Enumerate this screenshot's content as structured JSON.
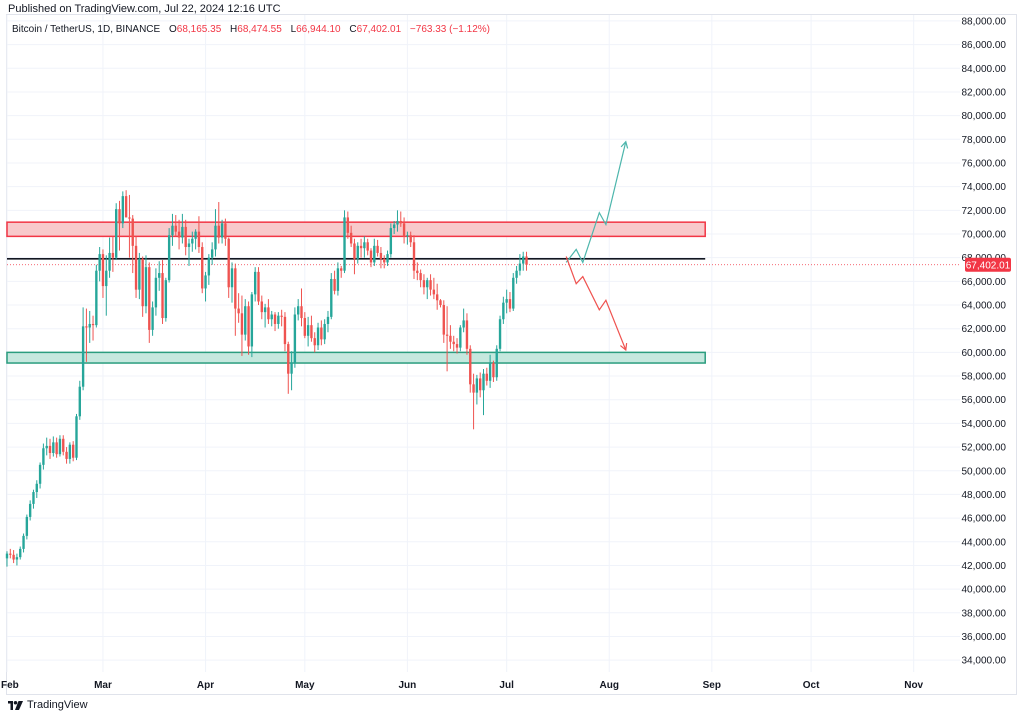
{
  "header": {
    "published": "Published on TradingView.com, Jul 22, 2024 12:16 UTC"
  },
  "legend": {
    "symbol": "Bitcoin / TetherUS, 1D, BINANCE",
    "open_label": "O",
    "open": "68,165.35",
    "high_label": "H",
    "high": "68,474.55",
    "low_label": "L",
    "low": "66,944.10",
    "close_label": "C",
    "close": "67,402.01",
    "change": "−763.33 (−1.12%)"
  },
  "footer": {
    "brand": "TradingView"
  },
  "colors": {
    "up": "#26a69a",
    "down": "#ef5350",
    "resistance_fill": "#f8c9cb",
    "resistance_stroke": "#f23645",
    "support_fill": "#c5e8de",
    "support_stroke": "#2a9d7e",
    "level_line": "#131722",
    "bull_arrow": "#4db6ac",
    "bear_arrow": "#ef5350",
    "grid": "#f0f3fa",
    "price_tag": "#f23645"
  },
  "chart_data": {
    "type": "candlestick",
    "y_axis": {
      "min": 33000,
      "max": 88500,
      "ticks": [
        "88,000.00",
        "86,000.00",
        "84,000.00",
        "82,000.00",
        "80,000.00",
        "78,000.00",
        "76,000.00",
        "74,000.00",
        "72,000.00",
        "70,000.00",
        "68,000.00",
        "66,000.00",
        "64,000.00",
        "62,000.00",
        "60,000.00",
        "58,000.00",
        "56,000.00",
        "54,000.00",
        "52,000.00",
        "50,000.00",
        "48,000.00",
        "46,000.00",
        "44,000.00",
        "42,000.00",
        "40,000.00",
        "38,000.00",
        "36,000.00",
        "34,000.00"
      ]
    },
    "x_axis": {
      "labels": [
        "Feb",
        "Mar",
        "Apr",
        "May",
        "Jun",
        "Jul",
        "Aug",
        "Sep",
        "Oct",
        "Nov"
      ],
      "day_index": [
        0,
        29,
        60,
        90,
        121,
        151,
        182,
        213,
        243,
        274
      ],
      "range_days": [
        0,
        288
      ]
    },
    "last_price": "67,402.01",
    "last_price_value": 67402.01,
    "resistance_zone": [
      69800,
      71000
    ],
    "support_zone": [
      59100,
      60000
    ],
    "key_level": 67900,
    "zones_end_day": 211,
    "bull_path": [
      [
        169,
        67600
      ],
      [
        172,
        68700
      ],
      [
        174,
        67600
      ],
      [
        179,
        71800
      ],
      [
        181,
        70800
      ],
      [
        187,
        77800
      ]
    ],
    "bear_path": [
      [
        169,
        68100
      ],
      [
        172,
        65800
      ],
      [
        174,
        66400
      ],
      [
        179,
        63600
      ],
      [
        181,
        64400
      ],
      [
        187,
        60200
      ]
    ],
    "candles": [
      [
        0,
        42600,
        43200,
        41900,
        43000
      ],
      [
        1,
        43000,
        43400,
        42600,
        42900
      ],
      [
        2,
        42900,
        43300,
        42200,
        42500
      ],
      [
        3,
        42500,
        43000,
        42000,
        42700
      ],
      [
        4,
        42700,
        43600,
        42500,
        43400
      ],
      [
        5,
        43400,
        44700,
        43100,
        44500
      ],
      [
        6,
        44500,
        46300,
        44200,
        46100
      ],
      [
        7,
        46100,
        47500,
        45800,
        47200
      ],
      [
        8,
        47200,
        48400,
        46800,
        48200
      ],
      [
        9,
        48200,
        49200,
        47700,
        48900
      ],
      [
        10,
        48900,
        50700,
        48500,
        50500
      ],
      [
        11,
        50500,
        52300,
        50100,
        51900
      ],
      [
        12,
        51900,
        52800,
        51300,
        52100
      ],
      [
        13,
        52100,
        52700,
        51000,
        51500
      ],
      [
        14,
        51500,
        52900,
        51200,
        52400
      ],
      [
        15,
        52400,
        52800,
        51100,
        51400
      ],
      [
        16,
        51400,
        53000,
        51200,
        52700
      ],
      [
        17,
        52700,
        53000,
        51300,
        51600
      ],
      [
        18,
        51600,
        52000,
        50600,
        51000
      ],
      [
        19,
        51000,
        52400,
        50600,
        52200
      ],
      [
        20,
        52200,
        52500,
        50800,
        51100
      ],
      [
        21,
        51100,
        54800,
        50900,
        54600
      ],
      [
        22,
        54600,
        57600,
        54300,
        57100
      ],
      [
        23,
        57100,
        63800,
        56800,
        62200
      ],
      [
        24,
        62200,
        63700,
        59200,
        62100
      ],
      [
        25,
        62100,
        63500,
        60800,
        62400
      ],
      [
        26,
        62400,
        63100,
        61000,
        62300
      ],
      [
        27,
        62300,
        67400,
        62100,
        66900
      ],
      [
        28,
        66900,
        68900,
        66000,
        68300
      ],
      [
        29,
        68300,
        68700,
        64600,
        65600
      ],
      [
        30,
        65600,
        68200,
        63100,
        66900
      ],
      [
        31,
        66900,
        69700,
        66300,
        68400
      ],
      [
        32,
        68400,
        69800,
        66800,
        68000
      ],
      [
        33,
        68000,
        72600,
        67800,
        72100
      ],
      [
        34,
        72100,
        72800,
        68600,
        70900
      ],
      [
        35,
        70900,
        73600,
        70500,
        73200
      ],
      [
        36,
        73200,
        73700,
        71400,
        71400
      ],
      [
        37,
        71400,
        73300,
        68000,
        71300
      ],
      [
        38,
        71300,
        71600,
        66700,
        69000
      ],
      [
        39,
        69000,
        69800,
        64600,
        65300
      ],
      [
        40,
        65300,
        68400,
        64500,
        67900
      ],
      [
        41,
        67900,
        68100,
        63000,
        63900
      ],
      [
        42,
        63900,
        68200,
        63300,
        67200
      ],
      [
        43,
        67200,
        67600,
        60800,
        61900
      ],
      [
        44,
        61900,
        64300,
        61400,
        63800
      ],
      [
        45,
        63800,
        67100,
        63100,
        66300
      ],
      [
        46,
        66300,
        67700,
        65200,
        66700
      ],
      [
        47,
        66700,
        67800,
        62400,
        62900
      ],
      [
        48,
        62900,
        66300,
        62600,
        66100
      ],
      [
        49,
        66100,
        70500,
        65900,
        69900
      ],
      [
        50,
        69900,
        71700,
        69000,
        70700
      ],
      [
        51,
        70700,
        71600,
        69800,
        70200
      ],
      [
        52,
        70200,
        71200,
        68700,
        69700
      ],
      [
        53,
        69700,
        71700,
        69200,
        70600
      ],
      [
        54,
        70600,
        71200,
        68200,
        68900
      ],
      [
        55,
        68900,
        69600,
        67300,
        69200
      ],
      [
        56,
        69200,
        70200,
        68500,
        69600
      ],
      [
        57,
        69600,
        70400,
        68700,
        70200
      ],
      [
        58,
        70200,
        71500,
        68400,
        68900
      ],
      [
        59,
        68900,
        69300,
        65000,
        65400
      ],
      [
        60,
        65400,
        66800,
        64300,
        66500
      ],
      [
        61,
        66500,
        68300,
        65700,
        68000
      ],
      [
        62,
        68000,
        69300,
        67400,
        68700
      ],
      [
        63,
        68700,
        72100,
        68100,
        70700
      ],
      [
        64,
        70700,
        72700,
        69200,
        69700
      ],
      [
        65,
        69700,
        71200,
        69200,
        70900
      ],
      [
        66,
        70900,
        71300,
        69000,
        69600
      ],
      [
        67,
        69600,
        69700,
        64600,
        65500
      ],
      [
        68,
        65500,
        67600,
        64200,
        67100
      ],
      [
        69,
        67100,
        67500,
        61400,
        63700
      ],
      [
        70,
        63700,
        65000,
        62500,
        63300
      ],
      [
        71,
        63300,
        64800,
        59700,
        61500
      ],
      [
        72,
        61500,
        64500,
        61000,
        63900
      ],
      [
        73,
        63900,
        64300,
        59800,
        60500
      ],
      [
        74,
        60500,
        65100,
        59600,
        64900
      ],
      [
        75,
        64900,
        67200,
        64300,
        66800
      ],
      [
        76,
        66800,
        67200,
        64000,
        64300
      ],
      [
        77,
        64300,
        64800,
        62800,
        63400
      ],
      [
        78,
        63400,
        64100,
        62100,
        63800
      ],
      [
        79,
        63800,
        64500,
        62400,
        62800
      ],
      [
        80,
        62800,
        63500,
        62200,
        63200
      ],
      [
        81,
        63200,
        63400,
        61800,
        62400
      ],
      [
        82,
        62400,
        63400,
        62000,
        63100
      ],
      [
        83,
        63100,
        63600,
        62200,
        63000
      ],
      [
        84,
        63000,
        63400,
        60100,
        60700
      ],
      [
        85,
        60700,
        60900,
        56500,
        58200
      ],
      [
        86,
        58200,
        60100,
        56800,
        59100
      ],
      [
        87,
        59100,
        63800,
        58700,
        63200
      ],
      [
        88,
        63200,
        64500,
        62700,
        63900
      ],
      [
        89,
        63900,
        65400,
        62200,
        62900
      ],
      [
        90,
        62900,
        63400,
        61200,
        61400
      ],
      [
        91,
        61400,
        63000,
        60500,
        62300
      ],
      [
        92,
        62300,
        63100,
        60900,
        61200
      ],
      [
        93,
        61200,
        61700,
        60000,
        60600
      ],
      [
        94,
        60600,
        62500,
        60200,
        62100
      ],
      [
        95,
        62100,
        62700,
        60600,
        61100
      ],
      [
        96,
        61100,
        62800,
        60700,
        62400
      ],
      [
        97,
        62400,
        63500,
        61700,
        63000
      ],
      [
        98,
        63000,
        66700,
        62800,
        66200
      ],
      [
        99,
        66200,
        66900,
        64900,
        65200
      ],
      [
        100,
        65200,
        67600,
        64800,
        67100
      ],
      [
        101,
        67100,
        67300,
        66300,
        66900
      ],
      [
        102,
        66900,
        72000,
        66700,
        71400
      ],
      [
        103,
        71400,
        71900,
        69600,
        70100
      ],
      [
        104,
        70100,
        70700,
        68900,
        69200
      ],
      [
        105,
        69200,
        69600,
        66600,
        67900
      ],
      [
        106,
        67900,
        69300,
        67500,
        69000
      ],
      [
        107,
        69000,
        69600,
        68000,
        68800
      ],
      [
        108,
        68800,
        69800,
        68000,
        69300
      ],
      [
        109,
        69300,
        69600,
        68200,
        68600
      ],
      [
        110,
        68600,
        68800,
        67200,
        67600
      ],
      [
        111,
        67600,
        69600,
        67300,
        69000
      ],
      [
        112,
        69000,
        69500,
        68100,
        68400
      ],
      [
        113,
        68400,
        68900,
        67100,
        67900
      ],
      [
        114,
        67900,
        68200,
        67100,
        67600
      ],
      [
        115,
        67600,
        68600,
        67300,
        68300
      ],
      [
        116,
        68300,
        70900,
        68000,
        70500
      ],
      [
        117,
        70500,
        71100,
        70000,
        70800
      ],
      [
        118,
        70800,
        72000,
        70200,
        71100
      ],
      [
        119,
        71100,
        71900,
        70600,
        70900
      ],
      [
        120,
        70900,
        71400,
        69200,
        69800
      ],
      [
        121,
        69800,
        70200,
        69100,
        69900
      ],
      [
        122,
        69900,
        70200,
        68900,
        69300
      ],
      [
        123,
        69300,
        69900,
        66200,
        66900
      ],
      [
        124,
        66900,
        67600,
        66100,
        66700
      ],
      [
        125,
        66700,
        67000,
        65500,
        66100
      ],
      [
        126,
        66100,
        66600,
        64900,
        65500
      ],
      [
        127,
        65500,
        66300,
        64500,
        66100
      ],
      [
        128,
        66100,
        66600,
        64800,
        65300
      ],
      [
        129,
        65300,
        66300,
        64500,
        64900
      ],
      [
        130,
        64900,
        65800,
        63600,
        64400
      ],
      [
        131,
        64400,
        64500,
        63800,
        64000
      ],
      [
        132,
        64000,
        64400,
        60800,
        61500
      ],
      [
        133,
        61500,
        63900,
        58400,
        61400
      ],
      [
        134,
        61400,
        62300,
        60300,
        60900
      ],
      [
        135,
        60900,
        61400,
        60100,
        60700
      ],
      [
        136,
        60700,
        61200,
        59900,
        60400
      ],
      [
        137,
        60400,
        62300,
        60100,
        62100
      ],
      [
        138,
        62100,
        63700,
        61700,
        62700
      ],
      [
        139,
        62700,
        63300,
        59800,
        60300
      ],
      [
        140,
        60300,
        60600,
        56600,
        57300
      ],
      [
        141,
        57300,
        58200,
        53500,
        56600
      ],
      [
        142,
        56600,
        58100,
        55600,
        57800
      ],
      [
        143,
        57800,
        58300,
        56200,
        56800
      ],
      [
        144,
        56800,
        58600,
        54700,
        58200
      ],
      [
        145,
        58200,
        58700,
        57200,
        57600
      ],
      [
        146,
        57600,
        59800,
        57000,
        59100
      ],
      [
        147,
        59100,
        59300,
        57500,
        57900
      ],
      [
        148,
        57900,
        60600,
        57600,
        60300
      ],
      [
        149,
        60300,
        63100,
        60100,
        62800
      ],
      [
        150,
        62800,
        64700,
        62400,
        64200
      ],
      [
        151,
        64200,
        65300,
        63300,
        64500
      ],
      [
        152,
        64500,
        65100,
        63400,
        63700
      ],
      [
        153,
        63700,
        66700,
        63500,
        66300
      ],
      [
        154,
        66300,
        67300,
        65800,
        66900
      ],
      [
        155,
        66900,
        68300,
        66500,
        67500
      ],
      [
        156,
        67500,
        68500,
        66900,
        68100
      ],
      [
        157,
        68100,
        68500,
        66900,
        67400
      ]
    ]
  }
}
